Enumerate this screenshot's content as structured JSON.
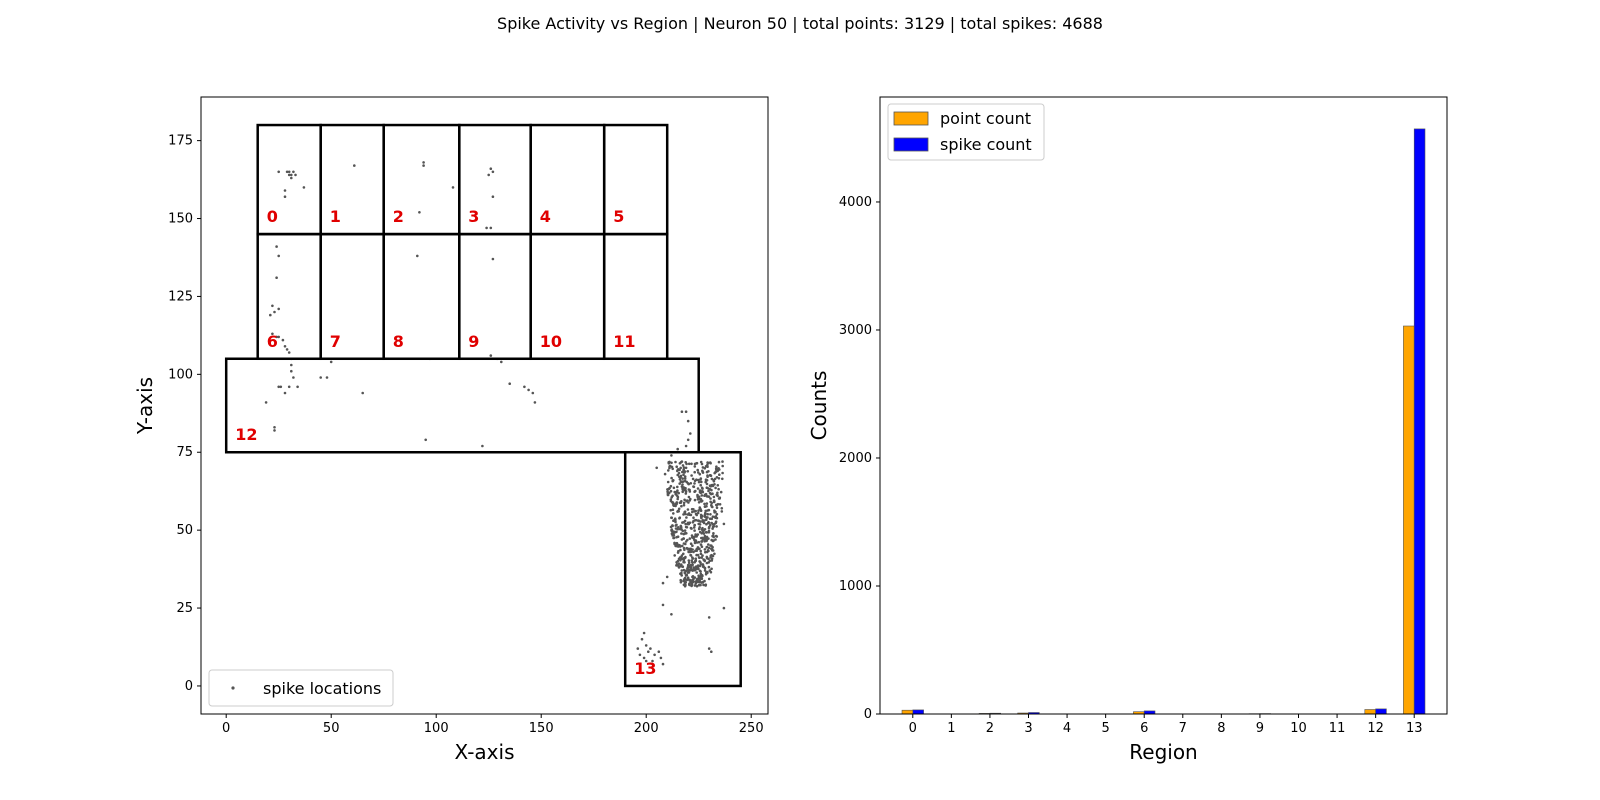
{
  "figure": {
    "suptitle": "Spike Activity vs Region | Neuron 50 | total points: 3129 | total spikes: 4688"
  },
  "chart_data": [
    {
      "type": "scatter",
      "xlabel": "X-axis",
      "ylabel": "Y-axis",
      "xlim": [
        -12,
        258
      ],
      "ylim": [
        -9,
        189
      ],
      "xticks": [
        0,
        50,
        100,
        150,
        200,
        250
      ],
      "yticks": [
        0,
        25,
        50,
        75,
        100,
        125,
        150,
        175
      ],
      "grid": false,
      "legend": {
        "placement": "lower-left",
        "entries": [
          "spike locations"
        ]
      },
      "colors": {
        "points": "#555555",
        "region_border": "#000000",
        "region_label": "#e00000"
      },
      "regions": [
        {
          "label": "0",
          "x0": 15,
          "x1": 45,
          "y0": 145,
          "y1": 180
        },
        {
          "label": "1",
          "x0": 45,
          "x1": 75,
          "y0": 145,
          "y1": 180
        },
        {
          "label": "2",
          "x0": 75,
          "x1": 111,
          "y0": 145,
          "y1": 180
        },
        {
          "label": "3",
          "x0": 111,
          "x1": 145,
          "y0": 145,
          "y1": 180
        },
        {
          "label": "4",
          "x0": 145,
          "x1": 180,
          "y0": 145,
          "y1": 180
        },
        {
          "label": "5",
          "x0": 180,
          "x1": 210,
          "y0": 145,
          "y1": 180
        },
        {
          "label": "6",
          "x0": 15,
          "x1": 45,
          "y0": 105,
          "y1": 145
        },
        {
          "label": "7",
          "x0": 45,
          "x1": 75,
          "y0": 105,
          "y1": 145
        },
        {
          "label": "8",
          "x0": 75,
          "x1": 111,
          "y0": 105,
          "y1": 145
        },
        {
          "label": "9",
          "x0": 111,
          "x1": 145,
          "y0": 105,
          "y1": 145
        },
        {
          "label": "10",
          "x0": 145,
          "x1": 180,
          "y0": 105,
          "y1": 145
        },
        {
          "label": "11",
          "x0": 180,
          "x1": 210,
          "y0": 105,
          "y1": 145
        },
        {
          "label": "12",
          "x0": 0,
          "x1": 225,
          "y0": 75,
          "y1": 105
        },
        {
          "label": "13",
          "x0": 190,
          "x1": 245,
          "y0": 0,
          "y1": 75
        }
      ],
      "points": [
        [
          25,
          165
        ],
        [
          30,
          165
        ],
        [
          31,
          164
        ],
        [
          32,
          165
        ],
        [
          31,
          163
        ],
        [
          33,
          164
        ],
        [
          30,
          164
        ],
        [
          29,
          165
        ],
        [
          28,
          159
        ],
        [
          28,
          157
        ],
        [
          37,
          160
        ],
        [
          61,
          167
        ],
        [
          94,
          168
        ],
        [
          94,
          167
        ],
        [
          108,
          160
        ],
        [
          92,
          152
        ],
        [
          126,
          166
        ],
        [
          127,
          165
        ],
        [
          125,
          164
        ],
        [
          127,
          157
        ],
        [
          124,
          147
        ],
        [
          126,
          147
        ],
        [
          24,
          141
        ],
        [
          25,
          138
        ],
        [
          24,
          131
        ],
        [
          22,
          122
        ],
        [
          23,
          120
        ],
        [
          25,
          121
        ],
        [
          21,
          119
        ],
        [
          22,
          113
        ],
        [
          24,
          112
        ],
        [
          25,
          112
        ],
        [
          27,
          111
        ],
        [
          28,
          109
        ],
        [
          29,
          108
        ],
        [
          30,
          107
        ],
        [
          31,
          105
        ],
        [
          31,
          103
        ],
        [
          31,
          101
        ],
        [
          32,
          99
        ],
        [
          30,
          96
        ],
        [
          28,
          94
        ],
        [
          26,
          96
        ],
        [
          25,
          96
        ],
        [
          91,
          138
        ],
        [
          127,
          137
        ],
        [
          19,
          91
        ],
        [
          23,
          83
        ],
        [
          23,
          82
        ],
        [
          34,
          96
        ],
        [
          45,
          99
        ],
        [
          48,
          99
        ],
        [
          50,
          104
        ],
        [
          65,
          94
        ],
        [
          97,
          105
        ],
        [
          126,
          106
        ],
        [
          129,
          105
        ],
        [
          131,
          104
        ],
        [
          135,
          97
        ],
        [
          142,
          96
        ],
        [
          144,
          95
        ],
        [
          146,
          94
        ],
        [
          147,
          91
        ],
        [
          95,
          79
        ],
        [
          122,
          77
        ],
        [
          217,
          88
        ],
        [
          219,
          88
        ],
        [
          220,
          85
        ],
        [
          221,
          81
        ],
        [
          220,
          79
        ],
        [
          219,
          77
        ],
        [
          215,
          76
        ],
        [
          212,
          74
        ],
        [
          205,
          70
        ],
        [
          209,
          68
        ],
        [
          217,
          72
        ],
        [
          219,
          70
        ],
        [
          223,
          65
        ],
        [
          211,
          62
        ],
        [
          213,
          58
        ],
        [
          212,
          54
        ],
        [
          226,
          60
        ],
        [
          229,
          66
        ],
        [
          236,
          57
        ],
        [
          237,
          52
        ],
        [
          233,
          47
        ],
        [
          231,
          44
        ],
        [
          229,
          41
        ],
        [
          226,
          36
        ],
        [
          222,
          35
        ],
        [
          210,
          35
        ],
        [
          208,
          33
        ],
        [
          208,
          26
        ],
        [
          212,
          23
        ],
        [
          230,
          22
        ],
        [
          237,
          25
        ],
        [
          199,
          17
        ],
        [
          198,
          15
        ],
        [
          196,
          12
        ],
        [
          197,
          10
        ],
        [
          199,
          9
        ],
        [
          200,
          13
        ],
        [
          202,
          12
        ],
        [
          204,
          10
        ],
        [
          200,
          8
        ],
        [
          197,
          7
        ],
        [
          203,
          8
        ],
        [
          206,
          11
        ],
        [
          207,
          9
        ],
        [
          208,
          7
        ],
        [
          201,
          11
        ],
        [
          231,
          11
        ],
        [
          230,
          12
        ],
        [
          215,
          60
        ],
        [
          218,
          58
        ],
        [
          216,
          54
        ],
        [
          219,
          51
        ],
        [
          217,
          47
        ],
        [
          220,
          44
        ],
        [
          218,
          41
        ],
        [
          221,
          38
        ],
        [
          223,
          56
        ],
        [
          225,
          52
        ],
        [
          224,
          48
        ],
        [
          222,
          45
        ],
        [
          224,
          42
        ],
        [
          226,
          39
        ],
        [
          228,
          55
        ],
        [
          230,
          51
        ],
        [
          227,
          47
        ],
        [
          229,
          43
        ],
        [
          231,
          58
        ],
        [
          233,
          54
        ],
        [
          232,
          49
        ],
        [
          234,
          61
        ],
        [
          236,
          56
        ],
        [
          226,
          62
        ],
        [
          221,
          60
        ],
        [
          217,
          64
        ],
        [
          213,
          49
        ],
        [
          214,
          45
        ],
        [
          219,
          37
        ],
        [
          222,
          34
        ]
      ],
      "dense_cluster": {
        "x_range": [
          210,
          238
        ],
        "y_range": [
          32,
          72
        ],
        "center": [
          223,
          52
        ]
      }
    },
    {
      "type": "bar",
      "xlabel": "Region",
      "ylabel": "Counts",
      "categories": [
        "0",
        "1",
        "2",
        "3",
        "4",
        "5",
        "6",
        "7",
        "8",
        "9",
        "10",
        "11",
        "12",
        "13"
      ],
      "ylim": [
        0,
        4820
      ],
      "yticks": [
        0,
        1000,
        2000,
        3000,
        4000
      ],
      "grid": false,
      "legend": {
        "placement": "top-left"
      },
      "series": [
        {
          "name": "point count",
          "color": "#ffa500",
          "values": [
            30,
            0,
            5,
            8,
            0,
            0,
            18,
            0,
            0,
            2,
            0,
            0,
            35,
            3031
          ]
        },
        {
          "name": "spike count",
          "color": "#0000ff",
          "values": [
            32,
            0,
            6,
            12,
            0,
            0,
            24,
            0,
            0,
            3,
            0,
            0,
            40,
            4571
          ]
        }
      ]
    }
  ]
}
